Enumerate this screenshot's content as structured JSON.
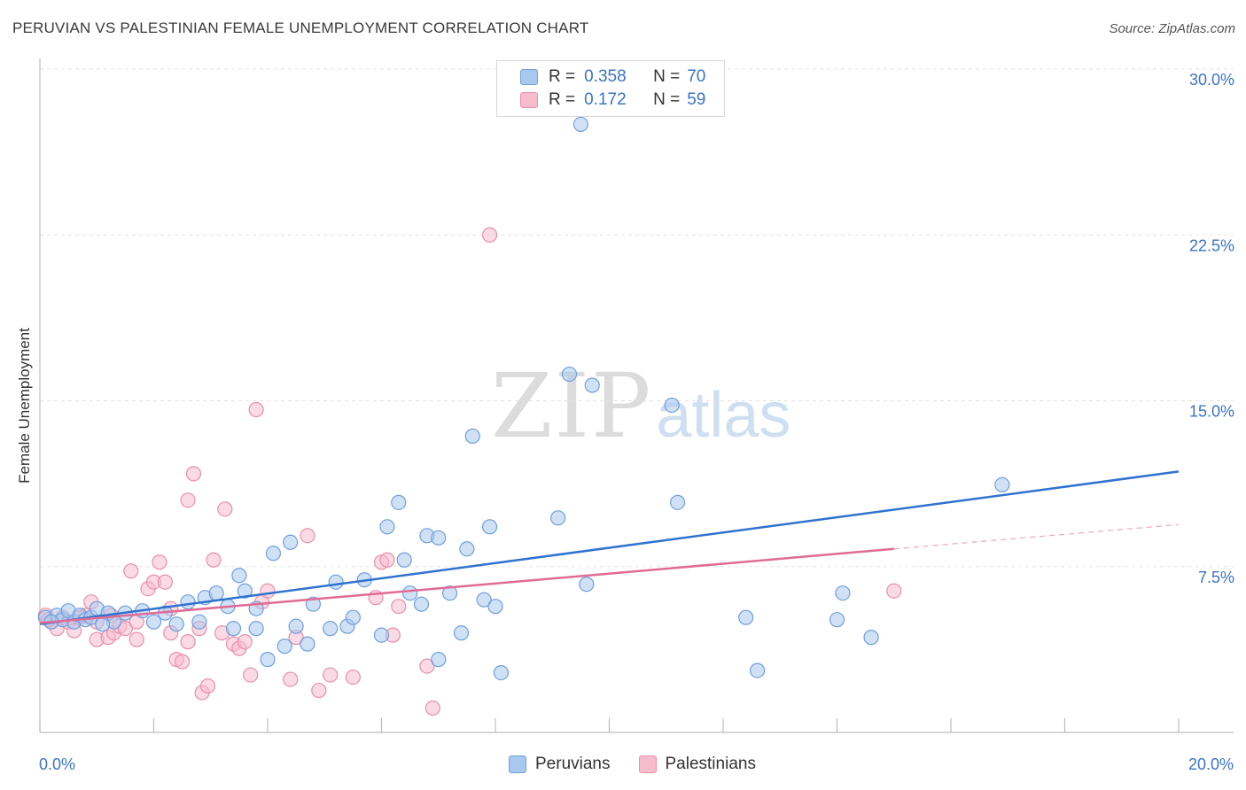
{
  "header": {
    "title": "PERUVIAN VS PALESTINIAN FEMALE UNEMPLOYMENT CORRELATION CHART",
    "source": "Source: ZipAtlas.com"
  },
  "watermark": {
    "zip": "ZIP",
    "atlas": "atlas"
  },
  "legend_top": {
    "peruvians": {
      "r_label": "R =",
      "r_value": "0.358",
      "n_label": "N =",
      "n_value": "70"
    },
    "palestinians": {
      "r_label": "R =",
      "r_value": "0.172",
      "n_label": "N =",
      "n_value": "59"
    }
  },
  "legend_bottom": {
    "peruvians": "Peruvians",
    "palestinians": "Palestinians"
  },
  "colors": {
    "peru_fill": "#a9c8ef",
    "peru_stroke": "#6f9fdc",
    "peru_line": "#2f72d0",
    "pal_fill": "#f6bccd",
    "pal_stroke": "#ea8fab",
    "pal_line": "#e06b94",
    "tick_label": "#3b73c9",
    "grid": "#e3e3e3"
  },
  "chart_data": {
    "type": "scatter",
    "title": "PERUVIAN VS PALESTINIAN FEMALE UNEMPLOYMENT CORRELATION CHART",
    "xlabel": "",
    "ylabel": "Female Unemployment",
    "xlim": [
      0,
      20
    ],
    "ylim": [
      0,
      30
    ],
    "x_tick_labels": [
      {
        "value": 0,
        "label": "0.0%"
      },
      {
        "value": 20,
        "label": "20.0%"
      }
    ],
    "y_ticks": [
      {
        "value": 7.5,
        "label": "7.5%"
      },
      {
        "value": 15,
        "label": "15.0%"
      },
      {
        "value": 22.5,
        "label": "22.5%"
      },
      {
        "value": 30,
        "label": "30.0%"
      }
    ],
    "x_minor_ticks": [
      0,
      2,
      4,
      6,
      8,
      10,
      12,
      14,
      16,
      18,
      20
    ],
    "grid": true,
    "legend_position": "top-center",
    "series": [
      {
        "name": "Peruvians",
        "r": 0.358,
        "n": 70,
        "trend": {
          "x0": 0,
          "y0": 4.9,
          "x1": 20,
          "y1": 11.8
        },
        "points": [
          [
            0.1,
            5.2
          ],
          [
            0.3,
            5.3
          ],
          [
            0.4,
            5.1
          ],
          [
            0.5,
            5.5
          ],
          [
            0.6,
            5.0
          ],
          [
            0.7,
            5.3
          ],
          [
            0.8,
            5.1
          ],
          [
            0.9,
            5.2
          ],
          [
            1.0,
            5.6
          ],
          [
            1.2,
            5.4
          ],
          [
            1.3,
            5.0
          ],
          [
            1.5,
            5.4
          ],
          [
            1.8,
            5.5
          ],
          [
            2.0,
            5.0
          ],
          [
            2.2,
            5.4
          ],
          [
            2.4,
            4.9
          ],
          [
            2.6,
            5.9
          ],
          [
            2.8,
            5.0
          ],
          [
            2.9,
            6.1
          ],
          [
            3.1,
            6.3
          ],
          [
            3.3,
            5.7
          ],
          [
            3.4,
            4.7
          ],
          [
            3.5,
            7.1
          ],
          [
            3.6,
            6.4
          ],
          [
            3.8,
            5.6
          ],
          [
            3.8,
            4.7
          ],
          [
            4.0,
            3.3
          ],
          [
            4.1,
            8.1
          ],
          [
            4.3,
            3.9
          ],
          [
            4.4,
            8.6
          ],
          [
            4.5,
            4.8
          ],
          [
            4.7,
            4.0
          ],
          [
            4.8,
            5.8
          ],
          [
            5.1,
            4.7
          ],
          [
            5.2,
            6.8
          ],
          [
            5.4,
            4.8
          ],
          [
            5.5,
            5.2
          ],
          [
            5.7,
            6.9
          ],
          [
            6.0,
            4.4
          ],
          [
            6.1,
            9.3
          ],
          [
            6.3,
            10.4
          ],
          [
            6.4,
            7.8
          ],
          [
            6.5,
            6.3
          ],
          [
            6.7,
            5.8
          ],
          [
            6.8,
            8.9
          ],
          [
            7.0,
            3.3
          ],
          [
            7.0,
            8.8
          ],
          [
            7.2,
            6.3
          ],
          [
            7.4,
            4.5
          ],
          [
            7.5,
            8.3
          ],
          [
            7.6,
            13.4
          ],
          [
            7.8,
            6.0
          ],
          [
            7.9,
            9.3
          ],
          [
            8.0,
            5.7
          ],
          [
            8.1,
            2.7
          ],
          [
            9.1,
            9.7
          ],
          [
            9.3,
            16.2
          ],
          [
            9.5,
            27.5
          ],
          [
            9.6,
            6.7
          ],
          [
            9.7,
            15.7
          ],
          [
            11.1,
            14.8
          ],
          [
            11.2,
            10.4
          ],
          [
            12.4,
            5.2
          ],
          [
            12.6,
            2.8
          ],
          [
            14.0,
            5.1
          ],
          [
            14.1,
            6.3
          ],
          [
            14.6,
            4.3
          ],
          [
            16.9,
            11.2
          ],
          [
            0.2,
            5.0
          ],
          [
            1.1,
            4.9
          ]
        ]
      },
      {
        "name": "Palestinians",
        "r": 0.172,
        "n": 59,
        "trend": {
          "x0": 0,
          "y0": 4.95,
          "x1": 15,
          "y1": 8.3
        },
        "trend_dashed": {
          "x0": 15,
          "y0": 8.3,
          "x1": 20,
          "y1": 9.4
        },
        "points": [
          [
            0.1,
            5.3
          ],
          [
            0.2,
            5.0
          ],
          [
            0.3,
            4.7
          ],
          [
            0.4,
            5.2
          ],
          [
            0.5,
            5.0
          ],
          [
            0.6,
            4.6
          ],
          [
            0.8,
            5.3
          ],
          [
            0.9,
            5.9
          ],
          [
            1.0,
            5.0
          ],
          [
            1.0,
            4.2
          ],
          [
            1.2,
            4.3
          ],
          [
            1.3,
            4.5
          ],
          [
            1.4,
            4.8
          ],
          [
            1.5,
            4.7
          ],
          [
            1.6,
            7.3
          ],
          [
            1.7,
            4.2
          ],
          [
            1.7,
            5.0
          ],
          [
            1.9,
            6.5
          ],
          [
            2.0,
            6.8
          ],
          [
            2.1,
            7.7
          ],
          [
            2.2,
            6.8
          ],
          [
            2.3,
            5.6
          ],
          [
            2.3,
            4.5
          ],
          [
            2.4,
            3.3
          ],
          [
            2.5,
            3.2
          ],
          [
            2.6,
            4.1
          ],
          [
            2.6,
            10.5
          ],
          [
            2.7,
            11.7
          ],
          [
            2.8,
            4.7
          ],
          [
            2.85,
            1.8
          ],
          [
            2.95,
            2.1
          ],
          [
            3.05,
            7.8
          ],
          [
            3.2,
            4.5
          ],
          [
            3.25,
            10.1
          ],
          [
            3.4,
            4.0
          ],
          [
            3.5,
            3.8
          ],
          [
            3.6,
            4.1
          ],
          [
            3.7,
            2.6
          ],
          [
            3.8,
            14.6
          ],
          [
            3.9,
            5.9
          ],
          [
            4.0,
            6.4
          ],
          [
            4.4,
            2.4
          ],
          [
            4.5,
            4.3
          ],
          [
            4.7,
            8.9
          ],
          [
            4.9,
            1.9
          ],
          [
            5.1,
            2.6
          ],
          [
            5.5,
            2.5
          ],
          [
            5.9,
            6.1
          ],
          [
            6.0,
            7.7
          ],
          [
            6.1,
            7.8
          ],
          [
            6.2,
            4.4
          ],
          [
            6.3,
            5.7
          ],
          [
            6.8,
            3.0
          ],
          [
            6.9,
            1.1
          ],
          [
            7.9,
            22.5
          ],
          [
            15.0,
            6.4
          ],
          [
            0.15,
            5.1
          ],
          [
            1.25,
            5.3
          ],
          [
            0.7,
            5.2
          ]
        ]
      }
    ]
  }
}
